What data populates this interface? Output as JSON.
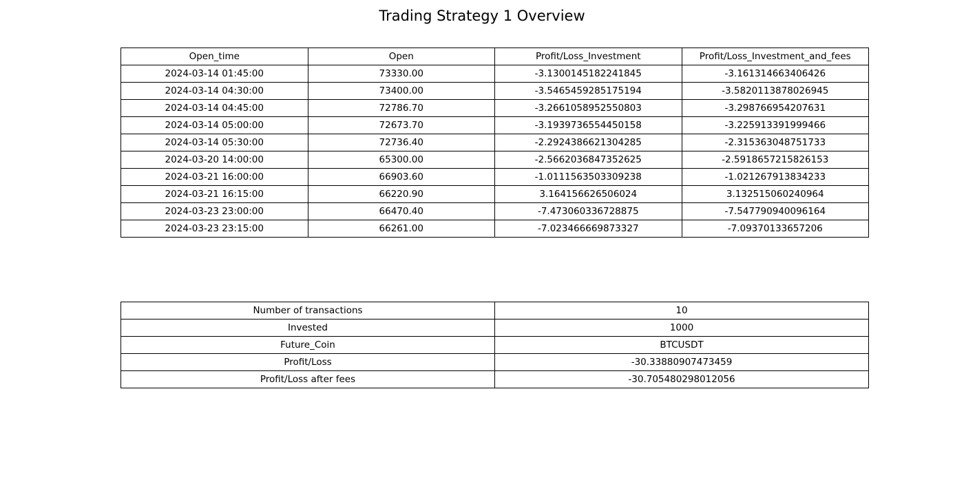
{
  "title": "Trading Strategy 1 Overview",
  "chart_data": [
    {
      "type": "table",
      "columns": [
        "Open_time",
        "Open",
        "Profit/Loss_Investment",
        "Profit/Loss_Investment_and_fees"
      ],
      "rows": [
        [
          "2024-03-14 01:45:00",
          "73330.00",
          "-3.1300145182241845",
          "-3.161314663406426"
        ],
        [
          "2024-03-14 04:30:00",
          "73400.00",
          "-3.5465459285175194",
          "-3.5820113878026945"
        ],
        [
          "2024-03-14 04:45:00",
          "72786.70",
          "-3.2661058952550803",
          "-3.298766954207631"
        ],
        [
          "2024-03-14 05:00:00",
          "72673.70",
          "-3.1939736554450158",
          "-3.225913391999466"
        ],
        [
          "2024-03-14 05:30:00",
          "72736.40",
          "-2.2924386621304285",
          "-2.315363048751733"
        ],
        [
          "2024-03-20 14:00:00",
          "65300.00",
          "-2.5662036847352625",
          "-2.5918657215826153"
        ],
        [
          "2024-03-21 16:00:00",
          "66903.60",
          "-1.0111563503309238",
          "-1.021267913834233"
        ],
        [
          "2024-03-21 16:15:00",
          "66220.90",
          "3.164156626506024",
          "3.132515060240964"
        ],
        [
          "2024-03-23 23:00:00",
          "66470.40",
          "-7.473060336728875",
          "-7.547790940096164"
        ],
        [
          "2024-03-23 23:15:00",
          "66261.00",
          "-7.023466669873327",
          "-7.09370133657206"
        ]
      ]
    },
    {
      "type": "table",
      "columns": [],
      "rows": [
        [
          "Number of transactions",
          "10"
        ],
        [
          "Invested",
          "1000"
        ],
        [
          "Future_Coin",
          "BTCUSDT"
        ],
        [
          "Profit/Loss",
          "-30.33880907473459"
        ],
        [
          "Profit/Loss after fees",
          "-30.705480298012056"
        ]
      ]
    }
  ]
}
